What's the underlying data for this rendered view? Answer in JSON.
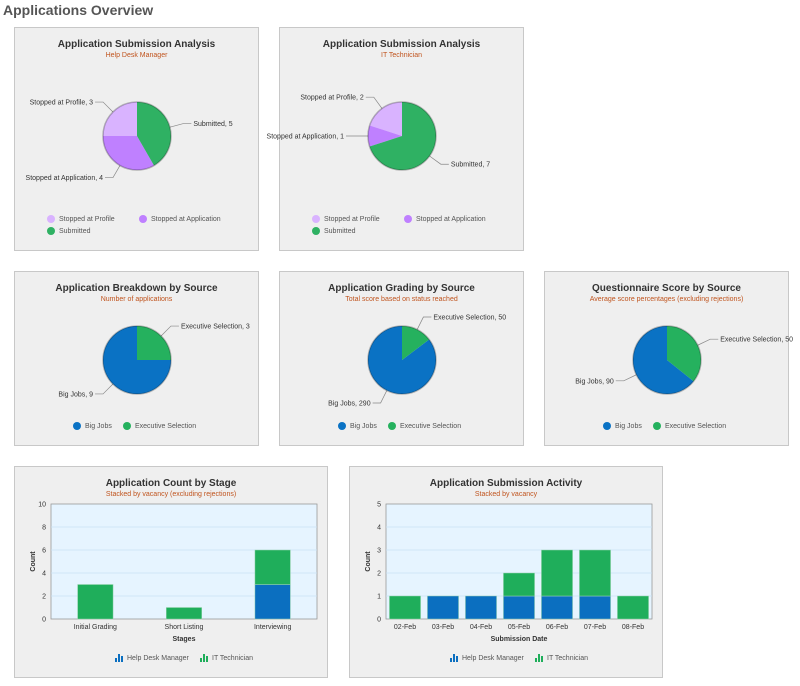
{
  "page_title": "Applications Overview",
  "colors": {
    "profile": "#d9b3ff",
    "application": "#bf80ff",
    "submitted": "#2fb163",
    "big_jobs": "#0a72c4",
    "executive": "#25b15e",
    "bar_blue": "#0b6fc0",
    "bar_green": "#1fae5b",
    "plot_bg": "#e6f4ff"
  },
  "chart_data": [
    {
      "type": "pie",
      "title": "Application Submission Analysis",
      "subtitle": "Help Desk Manager",
      "slices": [
        {
          "name": "Stopped at Profile",
          "value": 3,
          "label": "Stopped at Profile, 3",
          "color": "#d9b3ff"
        },
        {
          "name": "Stopped at Application",
          "value": 4,
          "label": "Stopped at Application, 4",
          "color": "#bf80ff"
        },
        {
          "name": "Submitted",
          "value": 5,
          "label": "Submitted, 5",
          "color": "#2fb163"
        }
      ],
      "legend": "bottom"
    },
    {
      "type": "pie",
      "title": "Application Submission Analysis",
      "subtitle": "IT Technician",
      "slices": [
        {
          "name": "Stopped at Profile",
          "value": 2,
          "label": "Stopped at Profile, 2",
          "color": "#d9b3ff"
        },
        {
          "name": "Stopped at Application",
          "value": 1,
          "label": "Stopped at Application, 1",
          "color": "#bf80ff"
        },
        {
          "name": "Submitted",
          "value": 7,
          "label": "Submitted, 7",
          "color": "#2fb163"
        }
      ],
      "legend": "bottom"
    },
    {
      "type": "pie",
      "title": "Application Breakdown by Source",
      "subtitle": "Number of applications",
      "slices": [
        {
          "name": "Big Jobs",
          "value": 9,
          "label": "Big Jobs, 9",
          "color": "#0a72c4"
        },
        {
          "name": "Executive Selection",
          "value": 3,
          "label": "Executive Selection, 3",
          "color": "#25b15e"
        }
      ],
      "legend": "bottom"
    },
    {
      "type": "pie",
      "title": "Application Grading by Source",
      "subtitle": "Total score based on status reached",
      "slices": [
        {
          "name": "Big Jobs",
          "value": 290,
          "label": "Big Jobs, 290",
          "color": "#0a72c4"
        },
        {
          "name": "Executive Selection",
          "value": 50,
          "label": "Executive Selection, 50",
          "color": "#25b15e"
        }
      ],
      "legend": "bottom"
    },
    {
      "type": "pie",
      "title": "Questionnaire Score by Source",
      "subtitle": "Average score percentages (excluding rejections)",
      "slices": [
        {
          "name": "Big Jobs",
          "value": 90,
          "label": "Big Jobs, 90",
          "color": "#0a72c4"
        },
        {
          "name": "Executive Selection",
          "value": 50,
          "label": "Executive Selection, 50",
          "color": "#25b15e"
        }
      ],
      "legend": "bottom"
    },
    {
      "type": "bar",
      "stacked": true,
      "title": "Application Count by Stage",
      "subtitle": "Stacked by vacancy (excluding rejections)",
      "categories": [
        "Initial Grading",
        "Short Listing",
        "Interviewing"
      ],
      "series": [
        {
          "name": "Help Desk Manager",
          "values": [
            0,
            0,
            3
          ],
          "color": "#0b6fc0"
        },
        {
          "name": "IT Technician",
          "values": [
            3,
            1,
            3
          ],
          "color": "#1fae5b"
        }
      ],
      "xlabel": "Stages",
      "ylabel": "Count",
      "ylim": [
        0,
        10
      ],
      "yticks": [
        0,
        2,
        4,
        6,
        8,
        10
      ],
      "grid": true,
      "legend": "bottom"
    },
    {
      "type": "bar",
      "stacked": true,
      "title": "Application Submission Activity",
      "subtitle": "Stacked by vacancy",
      "categories": [
        "02-Feb",
        "03-Feb",
        "04-Feb",
        "05-Feb",
        "06-Feb",
        "07-Feb",
        "08-Feb"
      ],
      "series": [
        {
          "name": "Help Desk Manager",
          "values": [
            0,
            1,
            1,
            1,
            1,
            1,
            0
          ],
          "color": "#0b6fc0"
        },
        {
          "name": "IT Technician",
          "values": [
            1,
            0,
            0,
            1,
            2,
            2,
            1
          ],
          "color": "#1fae5b"
        }
      ],
      "xlabel": "Submission Date",
      "ylabel": "Count",
      "ylim": [
        0,
        5
      ],
      "yticks": [
        0,
        1,
        2,
        3,
        4,
        5
      ],
      "grid": true,
      "legend": "bottom"
    }
  ]
}
